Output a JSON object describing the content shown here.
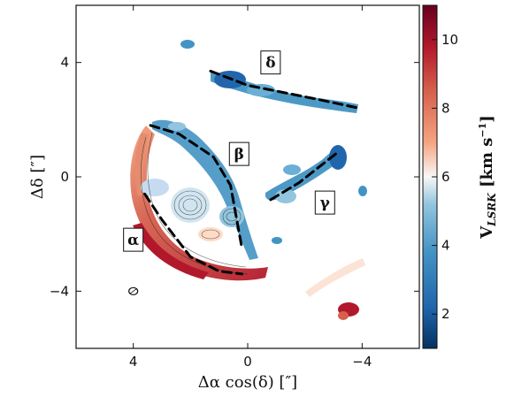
{
  "chart_data": {
    "type": "heatmap",
    "title": "",
    "xlabel": "Δα cos(δ) [″]",
    "ylabel": "Δδ [″]",
    "xlim": [
      6,
      -6
    ],
    "ylim": [
      -6,
      6
    ],
    "x_ticks": [
      4,
      0,
      -4
    ],
    "x_tick_labels": [
      "4",
      "0",
      "−4"
    ],
    "y_ticks": [
      4,
      0,
      -4
    ],
    "y_tick_labels": [
      "4",
      "0",
      "−4"
    ],
    "colorbar": {
      "label": "V_LSRK [km s⁻¹]",
      "vmin": 1,
      "vmax": 11,
      "ticks": [
        2,
        4,
        6,
        8,
        10
      ],
      "tick_labels": [
        "2",
        "4",
        "6",
        "8",
        "10"
      ],
      "colormap": "RdBu_r"
    },
    "regions": [
      {
        "label": "α",
        "x": 4.0,
        "y": -2.2,
        "path": [
          [
            3.6,
            -0.6
          ],
          [
            3.0,
            -1.5
          ],
          [
            2.0,
            -2.8
          ],
          [
            1.0,
            -3.3
          ],
          [
            0.2,
            -3.4
          ]
        ]
      },
      {
        "label": "β",
        "x": 0.3,
        "y": 0.8,
        "path": [
          [
            3.4,
            1.8
          ],
          [
            2.4,
            1.5
          ],
          [
            1.2,
            0.7
          ],
          [
            0.6,
            -0.3
          ],
          [
            0.2,
            -2.5
          ]
        ]
      },
      {
        "label": "γ",
        "x": -2.7,
        "y": -0.9,
        "path": [
          [
            -0.8,
            -0.8
          ],
          [
            -1.8,
            -0.2
          ],
          [
            -3.2,
            0.9
          ]
        ]
      },
      {
        "label": "δ",
        "x": -0.8,
        "y": 4.0,
        "path": [
          [
            1.3,
            3.7
          ],
          [
            0.0,
            3.2
          ],
          [
            -2.5,
            2.7
          ],
          [
            -3.9,
            2.4
          ]
        ]
      }
    ],
    "beam": {
      "x": 4.0,
      "y": -4.0
    }
  }
}
